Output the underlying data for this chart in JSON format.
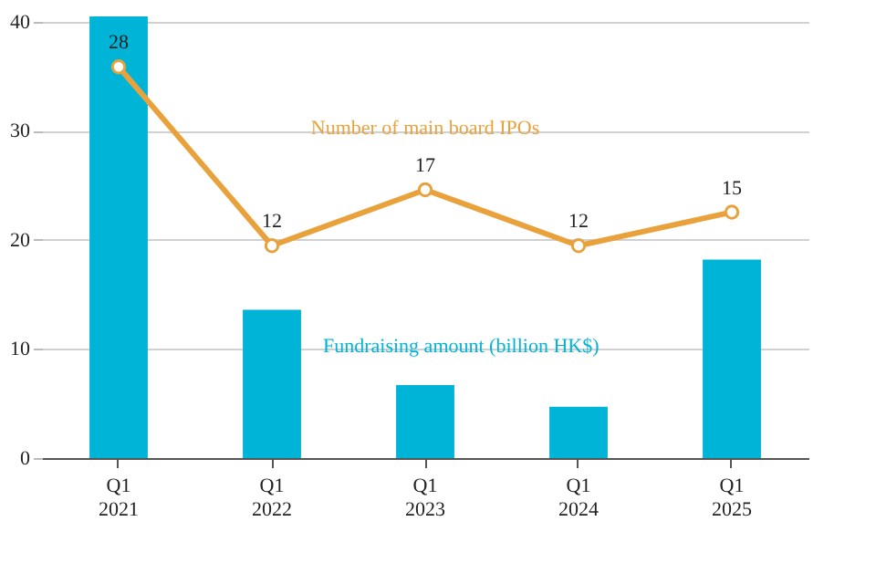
{
  "chart_data": {
    "type": "bar",
    "categories": [
      "Q1 2021",
      "Q1 2022",
      "Q1 2023",
      "Q1 2024",
      "Q1 2025"
    ],
    "series": [
      {
        "name": "Fundraising amount (billion HK$)",
        "color": "#00b4d8",
        "values": [
          40.5,
          13.6,
          6.7,
          4.7,
          18.2
        ]
      },
      {
        "name": "Number of main board IPOs",
        "type": "line",
        "axis": "y2",
        "color": "#e9a23b",
        "values": [
          28,
          12,
          17,
          12,
          15
        ],
        "data_labels": true
      }
    ],
    "ylim": [
      0,
      41
    ],
    "yticks": [
      0,
      10,
      20,
      30,
      40
    ],
    "y2lim": [
      -7,
      33
    ],
    "grid": "y",
    "marker": "circle"
  }
}
